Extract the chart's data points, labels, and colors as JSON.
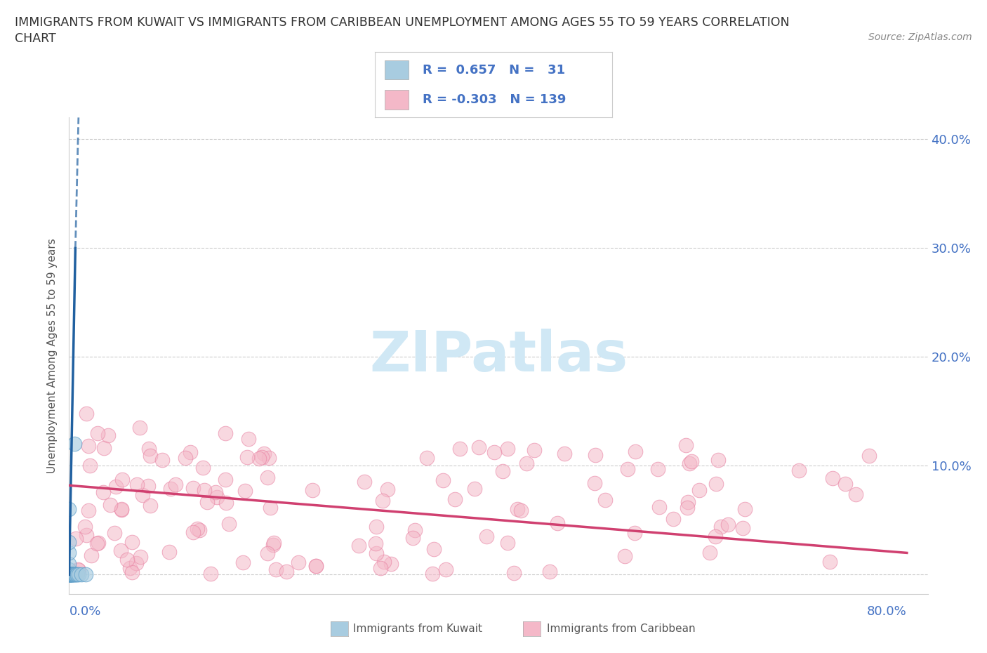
{
  "title_line1": "IMMIGRANTS FROM KUWAIT VS IMMIGRANTS FROM CARIBBEAN UNEMPLOYMENT AMONG AGES 55 TO 59 YEARS CORRELATION",
  "title_line2": "CHART",
  "source": "Source: ZipAtlas.com",
  "ylabel": "Unemployment Among Ages 55 to 59 years",
  "xlim": [
    0.0,
    0.82
  ],
  "ylim": [
    -0.018,
    0.42
  ],
  "kuwait_color": "#a8cce0",
  "kuwait_edge_color": "#5b9dc9",
  "caribbean_color": "#f4b8c8",
  "caribbean_edge_color": "#e87fa0",
  "kuwait_trend_color": "#2060a0",
  "caribbean_trend_color": "#d04070",
  "watermark_color": "#d0e8f5",
  "bg_color": "#ffffff",
  "grid_color": "#cccccc",
  "axis_label_color": "#4472c4",
  "title_color": "#333333",
  "ylabel_color": "#555555",
  "legend_text_color": "#4472c4",
  "kuwait_R": 0.657,
  "kuwait_N": 31,
  "caribbean_R": -0.303,
  "caribbean_N": 139,
  "kuwait_trend_x0": 0.0,
  "kuwait_trend_y0": 0.0,
  "kuwait_trend_x1": 0.006,
  "kuwait_trend_y1": 0.3,
  "kuwait_trend_dash_x1": 0.009,
  "kuwait_trend_dash_y1": 0.42,
  "caribbean_trend_x0": 0.0,
  "caribbean_trend_y0": 0.082,
  "caribbean_trend_x1": 0.8,
  "caribbean_trend_y1": 0.02
}
